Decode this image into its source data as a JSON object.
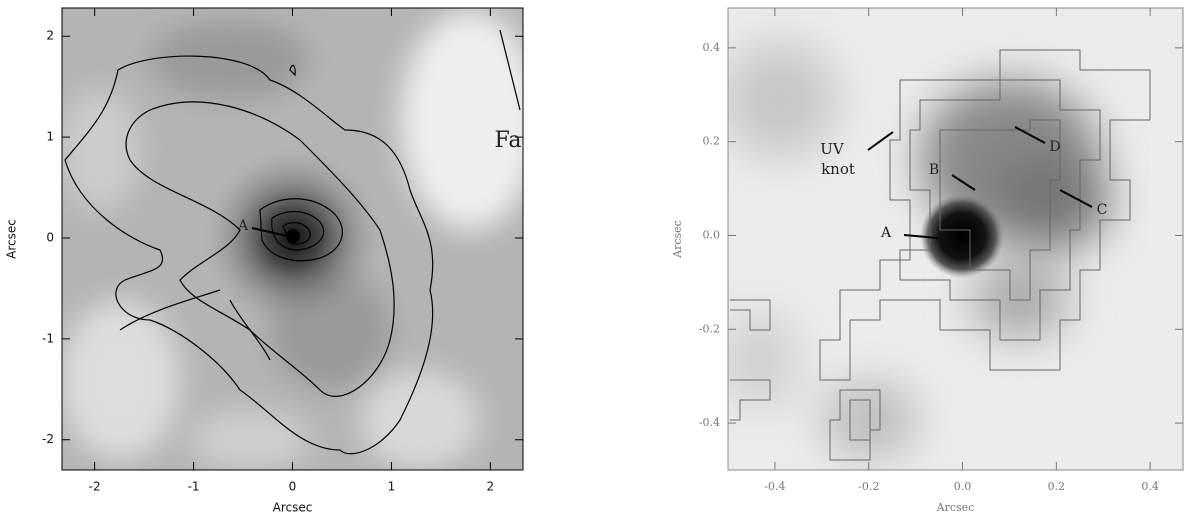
{
  "chart_data": [
    {
      "type": "image",
      "xlabel": "Arcsec",
      "ylabel": "Arcsec",
      "xlim": [
        -2.33,
        2.33
      ],
      "ylim": [
        -2.3,
        2.28
      ],
      "xticks": [
        -2,
        -1,
        0,
        1,
        2
      ],
      "yticks": [
        -2,
        -1,
        0,
        1,
        2
      ],
      "annotations": [
        "A",
        "Fa"
      ]
    },
    {
      "type": "image",
      "xlabel": "Arcsec",
      "ylabel": "Arcsec",
      "xlim": [
        -0.5,
        0.47
      ],
      "ylim": [
        -0.5,
        0.485
      ],
      "xticks": [
        -0.4,
        -0.2,
        {
          "value": 0,
          "label": "0.0"
        },
        0.2,
        0.4
      ],
      "yticks": [
        -0.4,
        -0.2,
        {
          "value": 0,
          "label": "0.0"
        },
        0.2,
        0.4
      ],
      "annotations": [
        "UV",
        "knot",
        "A",
        "B",
        "C",
        "D"
      ]
    }
  ]
}
